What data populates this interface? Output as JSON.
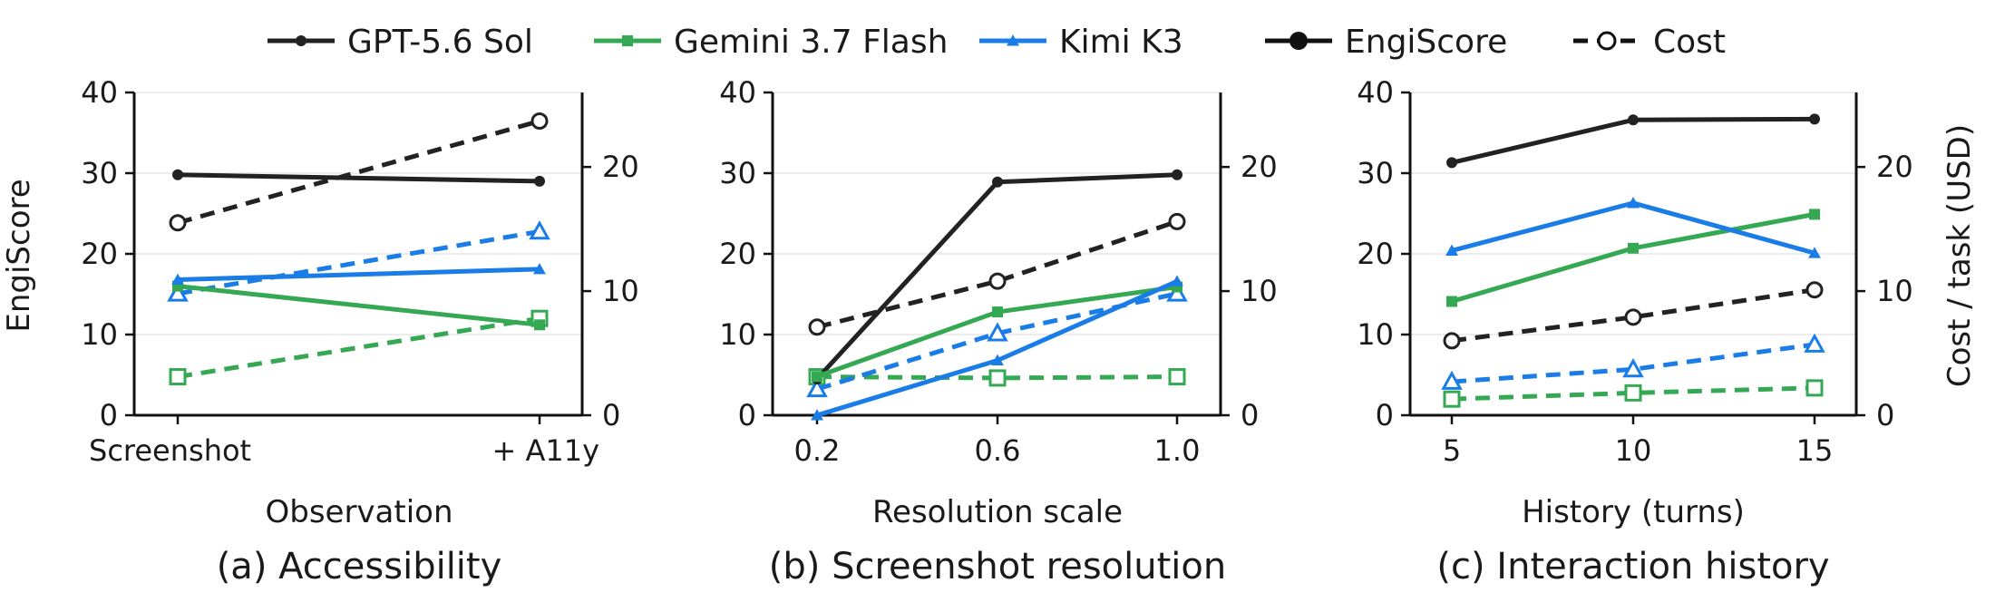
{
  "legend": {
    "placement": "top",
    "entries": [
      {
        "label": "GPT-5.6 Sol",
        "color": "#222222",
        "marker": "circle",
        "style": "solid"
      },
      {
        "label": "Gemini 3.7 Flash",
        "color": "#35a853",
        "marker": "square",
        "style": "solid"
      },
      {
        "label": "Kimi K3",
        "color": "#1a7ce6",
        "marker": "triangle",
        "style": "solid"
      },
      {
        "label": "EngiScore",
        "color": "#111111",
        "marker": "circle-filled",
        "style": "solid"
      },
      {
        "label": "Cost",
        "color": "#111111",
        "marker": "circle-open",
        "style": "dashed"
      }
    ]
  },
  "series_meta": [
    {
      "name": "GPT-5.6 Sol",
      "color": "#222222",
      "marker": "circle"
    },
    {
      "name": "Gemini 3.7 Flash",
      "color": "#35a853",
      "marker": "square"
    },
    {
      "name": "Kimi K3",
      "color": "#1a7ce6",
      "marker": "triangle"
    }
  ],
  "chart_data": [
    {
      "type": "line",
      "caption": "(a) Accessibility",
      "xlabel": "Observation",
      "ylabel": "EngiScore",
      "y2label": "",
      "categories": [
        "Screenshot",
        "+ A11y"
      ],
      "ylim": [
        0,
        40
      ],
      "yticks": [
        0,
        10,
        20,
        30,
        40
      ],
      "y2lim": [
        0,
        26
      ],
      "y2ticks": [
        0,
        10,
        20
      ],
      "grid": "horizontal",
      "series": [
        {
          "name": "GPT-5.6 Sol",
          "engiscore": [
            29.8,
            29.0
          ],
          "cost": [
            15.5,
            23.7
          ]
        },
        {
          "name": "Gemini 3.7 Flash",
          "engiscore": [
            16.0,
            11.2
          ],
          "cost": [
            3.1,
            7.8
          ]
        },
        {
          "name": "Kimi K3",
          "engiscore": [
            16.8,
            18.1
          ],
          "cost": [
            9.8,
            14.8
          ]
        }
      ]
    },
    {
      "type": "line",
      "caption": "(b) Screenshot resolution",
      "xlabel": "Resolution scale",
      "ylabel": "",
      "y2label": "",
      "categories": [
        "0.2",
        "0.6",
        "1.0"
      ],
      "ylim": [
        0,
        40
      ],
      "yticks": [
        0,
        10,
        20,
        30,
        40
      ],
      "y2lim": [
        0,
        26
      ],
      "y2ticks": [
        0,
        10,
        20
      ],
      "grid": "horizontal",
      "series": [
        {
          "name": "GPT-5.6 Sol",
          "engiscore": [
            4.5,
            28.9,
            29.8
          ],
          "cost": [
            7.1,
            10.8,
            15.6
          ]
        },
        {
          "name": "Gemini 3.7 Flash",
          "engiscore": [
            4.8,
            12.8,
            15.9
          ],
          "cost": [
            3.1,
            3.0,
            3.1
          ]
        },
        {
          "name": "Kimi K3",
          "engiscore": [
            0.0,
            6.8,
            16.6
          ],
          "cost": [
            2.1,
            6.6,
            9.8
          ]
        }
      ]
    },
    {
      "type": "line",
      "caption": "(c) Interaction history",
      "xlabel": "History (turns)",
      "ylabel": "",
      "y2label": "Cost / task (USD)",
      "categories": [
        "5",
        "10",
        "15"
      ],
      "ylim": [
        0,
        40
      ],
      "yticks": [
        0,
        10,
        20,
        30,
        40
      ],
      "y2lim": [
        0,
        26
      ],
      "y2ticks": [
        0,
        10,
        20
      ],
      "grid": "horizontal",
      "series": [
        {
          "name": "GPT-5.6 Sol",
          "engiscore": [
            31.3,
            36.6,
            36.7
          ],
          "cost": [
            6.0,
            7.9,
            10.1
          ]
        },
        {
          "name": "Gemini 3.7 Flash",
          "engiscore": [
            14.1,
            20.7,
            24.9
          ],
          "cost": [
            1.3,
            1.8,
            2.2
          ]
        },
        {
          "name": "Kimi K3",
          "engiscore": [
            20.4,
            26.3,
            20.1
          ],
          "cost": [
            2.7,
            3.7,
            5.7
          ]
        }
      ]
    }
  ]
}
